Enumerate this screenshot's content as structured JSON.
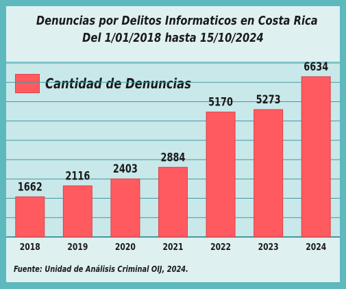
{
  "chart_data": {
    "type": "bar",
    "title": "Denuncias por Delitos Informaticos en Costa Rica",
    "subtitle": "Del 1/01/2018 hasta 15/10/2024",
    "categories": [
      "2018",
      "2019",
      "2020",
      "2021",
      "2022",
      "2023",
      "2024"
    ],
    "series": [
      {
        "name": "Cantidad de Denuncias",
        "values": [
          1662,
          2116,
          2403,
          2884,
          5170,
          5273,
          6634
        ]
      }
    ],
    "ylim": [
      0,
      7200
    ],
    "grid": true,
    "legend_position": "top-left",
    "data_labels": true,
    "colors": {
      "bar": "#ff5a5f",
      "bar_edge": "#d94448",
      "grid": "#3f9aa0"
    }
  },
  "source": "Fuente: Unidad de Análisis Criminal OIJ, 2024."
}
